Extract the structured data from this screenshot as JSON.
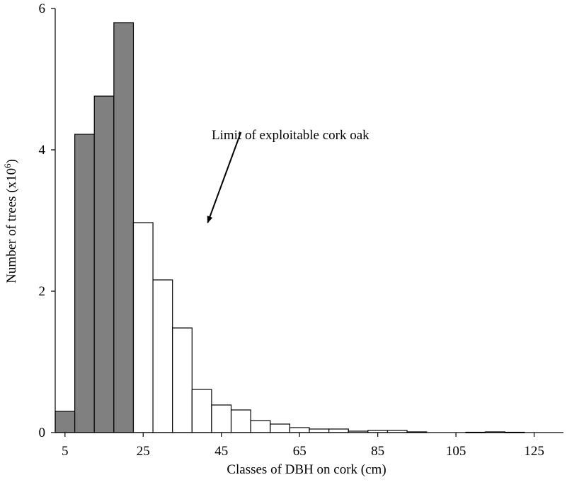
{
  "chart_data": {
    "type": "bar",
    "xlabel": "Classes of DBH on cork (cm)",
    "ylabel_main": "Number of trees (x10",
    "ylabel_sup": "6",
    "ylabel_close": ")",
    "ylim": [
      0,
      6
    ],
    "y_ticks": [
      0,
      2,
      4,
      6
    ],
    "xlim": [
      2.5,
      132.5
    ],
    "x_ticks": [
      5,
      25,
      45,
      65,
      85,
      105,
      125
    ],
    "bin_width": 5,
    "grid": false,
    "exploitable_limit": 22.5,
    "colors": {
      "unexploitable": "#808080",
      "exploitable": "#ffffff",
      "outline": "#000000"
    },
    "bars": [
      {
        "x": 5,
        "value": 0.3
      },
      {
        "x": 10,
        "value": 4.22
      },
      {
        "x": 15,
        "value": 4.76
      },
      {
        "x": 20,
        "value": 5.8
      },
      {
        "x": 25,
        "value": 2.97
      },
      {
        "x": 30,
        "value": 2.16
      },
      {
        "x": 35,
        "value": 1.48
      },
      {
        "x": 40,
        "value": 0.61
      },
      {
        "x": 45,
        "value": 0.39
      },
      {
        "x": 50,
        "value": 0.32
      },
      {
        "x": 55,
        "value": 0.17
      },
      {
        "x": 60,
        "value": 0.12
      },
      {
        "x": 65,
        "value": 0.07
      },
      {
        "x": 70,
        "value": 0.05
      },
      {
        "x": 75,
        "value": 0.05
      },
      {
        "x": 80,
        "value": 0.02
      },
      {
        "x": 85,
        "value": 0.03
      },
      {
        "x": 90,
        "value": 0.03
      },
      {
        "x": 95,
        "value": 0.01
      },
      {
        "x": 110,
        "value": 0.005
      },
      {
        "x": 115,
        "value": 0.01
      },
      {
        "x": 120,
        "value": 0.005
      }
    ],
    "annotation": {
      "text": "Limit of exploitable cork oak",
      "arrow_from": [
        50,
        4.25
      ],
      "arrow_to": [
        41.5,
        2.97
      ]
    }
  }
}
